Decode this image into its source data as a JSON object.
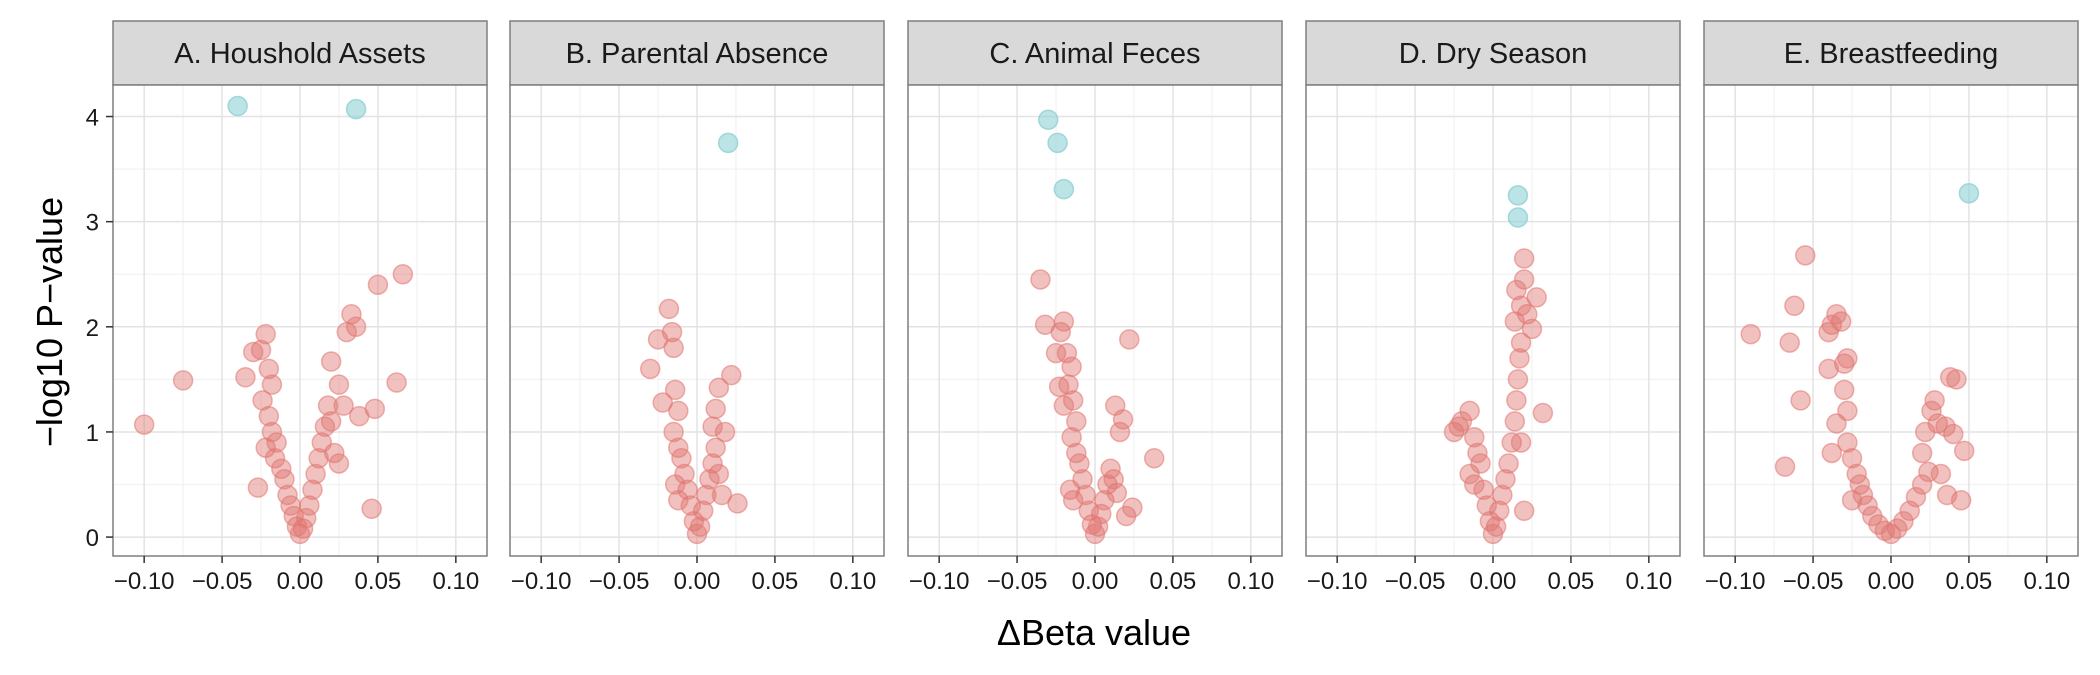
{
  "chart_data": {
    "type": "scatter",
    "xlabel": "ΔBeta value",
    "ylabel": "−log10 P−value",
    "xlim": [
      -0.12,
      0.12
    ],
    "ylim": [
      -0.18,
      4.3
    ],
    "x_ticks": [
      "−0.10",
      "−0.05",
      "0.00",
      "0.05",
      "0.10"
    ],
    "x_tick_values": [
      -0.1,
      -0.05,
      0,
      0.05,
      0.1
    ],
    "y_ticks": [
      "0",
      "1",
      "2",
      "3",
      "4"
    ],
    "y_tick_values": [
      0,
      1,
      2,
      3,
      4
    ],
    "grid": true,
    "legend": "none",
    "colors": {
      "significant": "#8fd1d4",
      "non_significant": "#e07570"
    },
    "panels": [
      {
        "title": "A. Houshold Assets",
        "significant": [
          [
            -0.04,
            4.1
          ],
          [
            0.036,
            4.07
          ]
        ],
        "points": [
          [
            -0.1,
            1.07
          ],
          [
            -0.075,
            1.49
          ],
          [
            -0.035,
            1.52
          ],
          [
            -0.03,
            1.76
          ],
          [
            -0.025,
            1.78
          ],
          [
            -0.022,
            1.93
          ],
          [
            -0.02,
            1.6
          ],
          [
            -0.018,
            1.45
          ],
          [
            -0.024,
            1.3
          ],
          [
            -0.02,
            1.15
          ],
          [
            -0.018,
            1.0
          ],
          [
            -0.015,
            0.9
          ],
          [
            -0.022,
            0.85
          ],
          [
            -0.016,
            0.75
          ],
          [
            -0.012,
            0.65
          ],
          [
            -0.027,
            0.47
          ],
          [
            -0.01,
            0.55
          ],
          [
            -0.008,
            0.4
          ],
          [
            -0.006,
            0.3
          ],
          [
            -0.004,
            0.2
          ],
          [
            -0.002,
            0.1
          ],
          [
            0.0,
            0.03
          ],
          [
            0.002,
            0.08
          ],
          [
            0.004,
            0.18
          ],
          [
            0.006,
            0.3
          ],
          [
            0.008,
            0.45
          ],
          [
            0.01,
            0.6
          ],
          [
            0.012,
            0.75
          ],
          [
            0.014,
            0.9
          ],
          [
            0.016,
            1.05
          ],
          [
            0.018,
            1.25
          ],
          [
            0.02,
            1.1
          ],
          [
            0.022,
            0.8
          ],
          [
            0.025,
            0.7
          ],
          [
            0.02,
            1.67
          ],
          [
            0.025,
            1.45
          ],
          [
            0.028,
            1.25
          ],
          [
            0.03,
            1.95
          ],
          [
            0.033,
            2.12
          ],
          [
            0.036,
            2.0
          ],
          [
            0.038,
            1.15
          ],
          [
            0.046,
            0.27
          ],
          [
            0.048,
            1.22
          ],
          [
            0.05,
            2.4
          ],
          [
            0.062,
            1.47
          ],
          [
            0.066,
            2.5
          ]
        ]
      },
      {
        "title": "B. Parental Absence",
        "significant": [
          [
            0.02,
            3.75
          ]
        ],
        "points": [
          [
            -0.03,
            1.6
          ],
          [
            -0.025,
            1.88
          ],
          [
            -0.022,
            1.28
          ],
          [
            -0.018,
            2.17
          ],
          [
            -0.016,
            1.95
          ],
          [
            -0.015,
            1.8
          ],
          [
            -0.014,
            1.4
          ],
          [
            -0.012,
            1.2
          ],
          [
            -0.015,
            1.0
          ],
          [
            -0.012,
            0.85
          ],
          [
            -0.01,
            0.75
          ],
          [
            -0.008,
            0.6
          ],
          [
            -0.014,
            0.5
          ],
          [
            -0.012,
            0.35
          ],
          [
            -0.006,
            0.45
          ],
          [
            -0.004,
            0.3
          ],
          [
            -0.002,
            0.15
          ],
          [
            0.0,
            0.03
          ],
          [
            0.002,
            0.1
          ],
          [
            0.004,
            0.25
          ],
          [
            0.006,
            0.4
          ],
          [
            0.008,
            0.55
          ],
          [
            0.01,
            0.7
          ],
          [
            0.012,
            0.85
          ],
          [
            0.014,
            0.6
          ],
          [
            0.016,
            0.4
          ],
          [
            0.01,
            1.05
          ],
          [
            0.012,
            1.22
          ],
          [
            0.014,
            1.42
          ],
          [
            0.018,
            1.0
          ],
          [
            0.022,
            1.54
          ],
          [
            0.026,
            0.32
          ]
        ]
      },
      {
        "title": "C. Animal Feces",
        "significant": [
          [
            -0.03,
            3.97
          ],
          [
            -0.024,
            3.75
          ],
          [
            -0.02,
            3.31
          ]
        ],
        "points": [
          [
            -0.035,
            2.45
          ],
          [
            -0.032,
            2.02
          ],
          [
            -0.025,
            1.75
          ],
          [
            -0.022,
            1.95
          ],
          [
            -0.02,
            2.05
          ],
          [
            -0.018,
            1.75
          ],
          [
            -0.023,
            1.43
          ],
          [
            -0.02,
            1.25
          ],
          [
            -0.017,
            1.45
          ],
          [
            -0.015,
            1.62
          ],
          [
            -0.014,
            1.3
          ],
          [
            -0.012,
            1.1
          ],
          [
            -0.015,
            0.95
          ],
          [
            -0.012,
            0.8
          ],
          [
            -0.01,
            0.7
          ],
          [
            -0.008,
            0.55
          ],
          [
            -0.016,
            0.45
          ],
          [
            -0.014,
            0.35
          ],
          [
            -0.006,
            0.4
          ],
          [
            -0.004,
            0.25
          ],
          [
            -0.002,
            0.12
          ],
          [
            0.0,
            0.03
          ],
          [
            0.002,
            0.1
          ],
          [
            0.004,
            0.22
          ],
          [
            0.006,
            0.35
          ],
          [
            0.008,
            0.5
          ],
          [
            0.01,
            0.65
          ],
          [
            0.012,
            0.55
          ],
          [
            0.014,
            0.42
          ],
          [
            0.016,
            1.0
          ],
          [
            0.013,
            1.25
          ],
          [
            0.018,
            1.12
          ],
          [
            0.02,
            0.2
          ],
          [
            0.022,
            1.88
          ],
          [
            0.024,
            0.28
          ],
          [
            0.038,
            0.75
          ]
        ]
      },
      {
        "title": "D. Dry Season",
        "significant": [
          [
            0.016,
            3.25
          ],
          [
            0.016,
            3.04
          ]
        ],
        "points": [
          [
            -0.025,
            1.0
          ],
          [
            -0.022,
            1.05
          ],
          [
            -0.02,
            1.1
          ],
          [
            -0.015,
            1.2
          ],
          [
            -0.012,
            0.95
          ],
          [
            -0.01,
            0.8
          ],
          [
            -0.008,
            0.7
          ],
          [
            -0.015,
            0.6
          ],
          [
            -0.012,
            0.5
          ],
          [
            -0.006,
            0.45
          ],
          [
            -0.004,
            0.3
          ],
          [
            -0.002,
            0.15
          ],
          [
            0.0,
            0.03
          ],
          [
            0.002,
            0.1
          ],
          [
            0.004,
            0.25
          ],
          [
            0.006,
            0.4
          ],
          [
            0.008,
            0.55
          ],
          [
            0.01,
            0.7
          ],
          [
            0.012,
            0.9
          ],
          [
            0.014,
            1.1
          ],
          [
            0.015,
            1.3
          ],
          [
            0.016,
            1.5
          ],
          [
            0.017,
            1.7
          ],
          [
            0.018,
            1.85
          ],
          [
            0.014,
            2.05
          ],
          [
            0.015,
            2.35
          ],
          [
            0.018,
            2.2
          ],
          [
            0.02,
            2.45
          ],
          [
            0.02,
            2.65
          ],
          [
            0.022,
            2.12
          ],
          [
            0.025,
            1.98
          ],
          [
            0.028,
            2.28
          ],
          [
            0.032,
            1.18
          ],
          [
            0.02,
            0.25
          ],
          [
            0.018,
            0.9
          ]
        ]
      },
      {
        "title": "E. Breastfeeding",
        "significant": [
          [
            0.05,
            3.27
          ]
        ],
        "points": [
          [
            -0.09,
            1.93
          ],
          [
            -0.068,
            0.67
          ],
          [
            -0.065,
            1.85
          ],
          [
            -0.062,
            2.2
          ],
          [
            -0.055,
            2.68
          ],
          [
            -0.058,
            1.3
          ],
          [
            -0.04,
            1.95
          ],
          [
            -0.04,
            1.6
          ],
          [
            -0.038,
            2.02
          ],
          [
            -0.035,
            2.12
          ],
          [
            -0.032,
            2.05
          ],
          [
            -0.03,
            1.65
          ],
          [
            -0.028,
            1.7
          ],
          [
            -0.03,
            1.4
          ],
          [
            -0.028,
            1.2
          ],
          [
            -0.035,
            1.08
          ],
          [
            -0.038,
            0.8
          ],
          [
            -0.028,
            0.9
          ],
          [
            -0.025,
            0.75
          ],
          [
            -0.022,
            0.6
          ],
          [
            -0.02,
            0.5
          ],
          [
            -0.025,
            0.35
          ],
          [
            -0.018,
            0.4
          ],
          [
            -0.015,
            0.3
          ],
          [
            -0.012,
            0.2
          ],
          [
            -0.008,
            0.12
          ],
          [
            -0.004,
            0.06
          ],
          [
            0.0,
            0.03
          ],
          [
            0.004,
            0.08
          ],
          [
            0.008,
            0.15
          ],
          [
            0.012,
            0.25
          ],
          [
            0.016,
            0.38
          ],
          [
            0.02,
            0.5
          ],
          [
            0.024,
            0.62
          ],
          [
            0.02,
            0.8
          ],
          [
            0.022,
            1.0
          ],
          [
            0.026,
            1.2
          ],
          [
            0.028,
            1.3
          ],
          [
            0.03,
            1.08
          ],
          [
            0.035,
            1.05
          ],
          [
            0.032,
            0.6
          ],
          [
            0.036,
            0.4
          ],
          [
            0.04,
            0.98
          ],
          [
            0.038,
            1.52
          ],
          [
            0.042,
            1.5
          ],
          [
            0.045,
            0.35
          ],
          [
            0.047,
            0.82
          ]
        ]
      }
    ]
  }
}
